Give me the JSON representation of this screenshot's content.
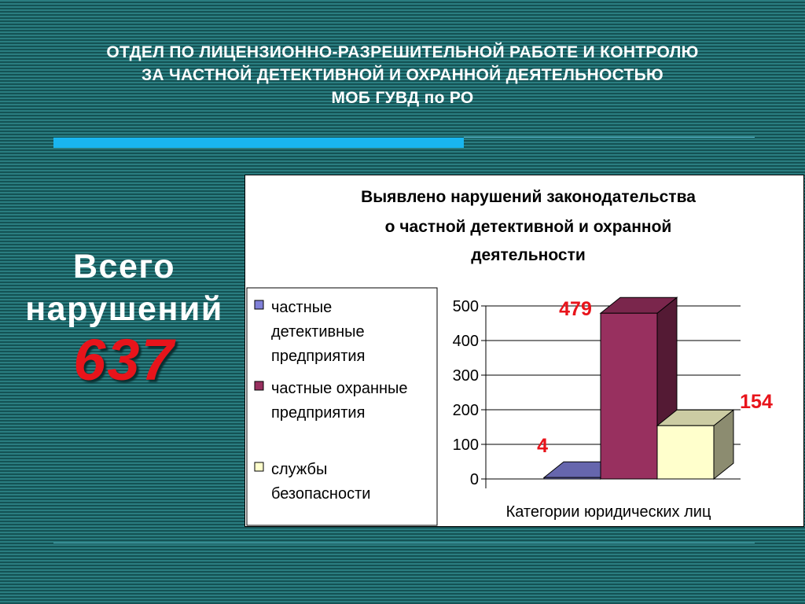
{
  "header": {
    "line1": "ОТДЕЛ ПО ЛИЦЕНЗИОННО-РАЗРЕШИТЕЛЬНОЙ РАБОТЕ И КОНТРОЛЮ",
    "line2": "ЗА ЧАСТНОЙ ДЕТЕКТИВНОЙ И ОХРАННОЙ ДЕЯТЕЛЬНОСТЬЮ",
    "line3": "МОБ ГУВД по РО"
  },
  "total": {
    "label_line1": "Всего",
    "label_line2": "нарушений",
    "value": "637"
  },
  "colors": {
    "background": "#1d6a6c",
    "accent": "#19b6f0",
    "highlight_red": "#e8141b"
  },
  "chart_data": {
    "type": "bar",
    "title_lines": [
      "Выявлено нарушений законодательства",
      "о частной детективной и охранной",
      "деятельности"
    ],
    "xlabel": "Категории юридических лиц",
    "ylabel": "",
    "ylim": [
      0,
      500
    ],
    "yticks": [
      "0",
      "100",
      "200",
      "300",
      "400",
      "500"
    ],
    "grid": true,
    "legend_position": "left",
    "series": [
      {
        "name_lines": [
          "частные",
          "детективные",
          "предприятия"
        ],
        "value": 4,
        "label": "4",
        "color": "#8080d8"
      },
      {
        "name_lines": [
          "частные охранные",
          "предприятия"
        ],
        "value": 479,
        "label": "479",
        "color": "#98305f"
      },
      {
        "name_lines": [
          "службы",
          "безопасности"
        ],
        "value": 154,
        "label": "154",
        "color": "#ffffcc"
      }
    ]
  }
}
